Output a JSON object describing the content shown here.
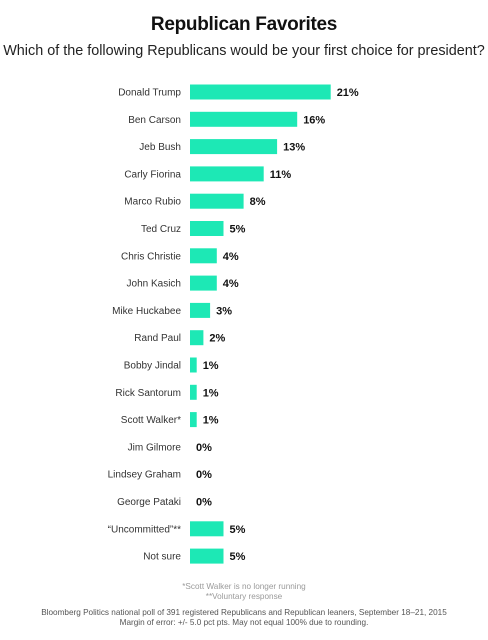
{
  "chart_data": {
    "type": "bar",
    "orientation": "horizontal",
    "title": "Republican Favorites",
    "subtitle": "Which of the following Republicans would be your first choice for president?",
    "categories": [
      "Donald Trump",
      "Ben Carson",
      "Jeb Bush",
      "Carly Fiorina",
      "Marco Rubio",
      "Ted Cruz",
      "Chris Christie",
      "John Kasich",
      "Mike Huckabee",
      "Rand Paul",
      "Bobby Jindal",
      "Rick Santorum",
      "Scott Walker*",
      "Jim Gilmore",
      "Lindsey Graham",
      "George Pataki",
      "“Uncommitted”**",
      "Not sure"
    ],
    "values": [
      21,
      16,
      13,
      11,
      8,
      5,
      4,
      4,
      3,
      2,
      1,
      1,
      1,
      0,
      0,
      0,
      5,
      5
    ],
    "value_labels": [
      "21%",
      "16%",
      "13%",
      "11%",
      "8%",
      "5%",
      "4%",
      "4%",
      "3%",
      "2%",
      "1%",
      "1%",
      "1%",
      "0%",
      "0%",
      "0%",
      "5%",
      "5%"
    ],
    "bar_color": "#1de8b5",
    "grid": false,
    "legend": "none"
  },
  "footnotes": {
    "note1": "*Scott Walker is no longer running",
    "note2": "**Voluntary response",
    "source1": "Bloomberg Politics national poll of 391 registered Republicans and Republican leaners, September 18–21, 2015",
    "source2": "Margin of error: +/- 5.0 pct pts. May not equal 100% due to rounding."
  }
}
